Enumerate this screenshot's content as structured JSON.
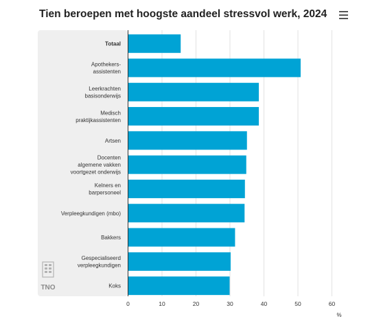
{
  "header": {
    "title": "Tien beroepen met hoogste aandeel stressvol werk, 2024"
  },
  "toolbar": {
    "menu_icon": "hamburger-menu-icon"
  },
  "logo": {
    "text": "TNO"
  },
  "colors": {
    "bar": "#00a3d5",
    "label_panel": "#efefef",
    "grid": "#e2e2e2",
    "axis": "#333333"
  },
  "chart_data": {
    "type": "bar",
    "orientation": "horizontal",
    "title": "Tien beroepen met hoogste aandeel stressvol werk, 2024",
    "xlabel": "%",
    "xlim": [
      0,
      60
    ],
    "xticks": [
      0,
      10,
      20,
      30,
      40,
      50,
      60
    ],
    "grid": true,
    "categories": [
      {
        "lines": [
          "Totaal"
        ],
        "bold": true
      },
      {
        "lines": [
          "Apothekers-",
          "assistenten"
        ]
      },
      {
        "lines": [
          "Leerkrachten",
          "basisonderwijs"
        ]
      },
      {
        "lines": [
          "Medisch",
          "praktijkassistenten"
        ]
      },
      {
        "lines": [
          "Artsen"
        ]
      },
      {
        "lines": [
          "Docenten",
          "algemene vakken",
          "voortgezet onderwijs"
        ]
      },
      {
        "lines": [
          "Kelners en",
          "barpersoneel"
        ]
      },
      {
        "lines": [
          "Verpleegkundigen (mbo)"
        ]
      },
      {
        "lines": [
          "Bakkers"
        ]
      },
      {
        "lines": [
          "Gespecialiseerd",
          "verpleegkundigen"
        ]
      },
      {
        "lines": [
          "Koks"
        ]
      }
    ],
    "values": [
      15.5,
      50.8,
      38.5,
      38.5,
      35.0,
      34.8,
      34.4,
      34.3,
      31.5,
      30.2,
      29.9
    ]
  }
}
